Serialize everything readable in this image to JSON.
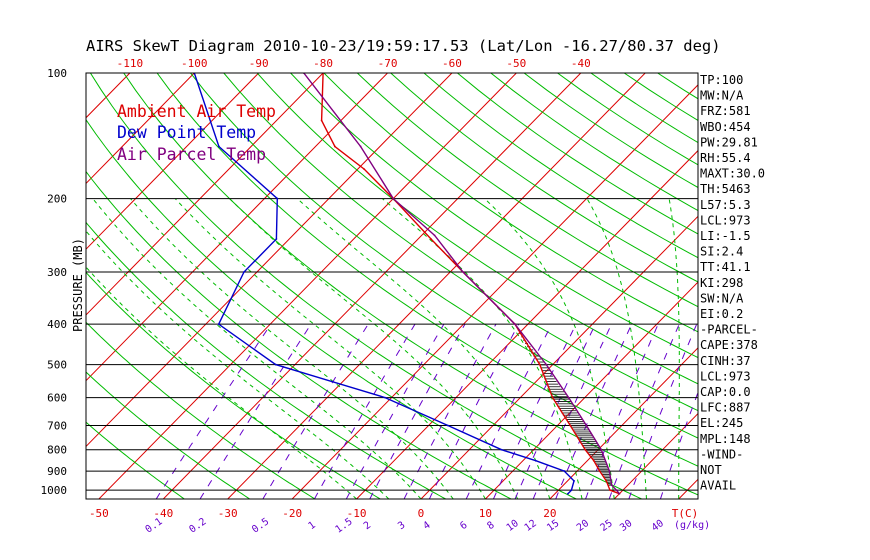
{
  "title": "AIRS SkewT Diagram 2010-10-23/19:59:17.53 (Lat/Lon -16.27/80.37 deg)",
  "ylabel": "PRESSURE (MB)",
  "legend": [
    "Ambient Air Temp",
    "Dew Point Temp",
    "Air Parcel Temp"
  ],
  "stats": [
    "TP:100",
    "MW:N/A",
    "FRZ:581",
    "WBO:454",
    "PW:29.81",
    "RH:55.4",
    "MAXT:30.0",
    "TH:5463",
    "L57:5.3",
    "LCL:973",
    "LI:-1.5",
    "SI:2.4",
    "TT:41.1",
    "KI:298",
    "SW:N/A",
    "EI:0.2",
    "-PARCEL-",
    "CAPE:378",
    "CINH:37",
    "LCL:973",
    "CAP:0.0",
    "LFC:887",
    "EL:245",
    "MPL:148",
    "-WIND-",
    "NOT",
    "AVAIL"
  ],
  "colors": {
    "temp": "#dd0000",
    "dewpoint": "#0000cc",
    "parcel": "#800080",
    "isotherm": "#dd0000",
    "dry_adiabat": "#00bb00",
    "mixing_ratio": "#6600cc",
    "axis": "#000000"
  },
  "chart_data": {
    "type": "line",
    "title": "AIRS SkewT Diagram 2010-10-23/19:59:17.53 (Lat/Lon -16.27/80.37 deg)",
    "ylabel": "PRESSURE (MB)",
    "y_scale": "log",
    "y_range": [
      1050,
      100
    ],
    "pressure_ticks": [
      100,
      200,
      300,
      400,
      500,
      600,
      700,
      800,
      900,
      1000
    ],
    "x_range": [
      -52,
      43
    ],
    "bottom_temp_ticks": [
      -50,
      -40,
      -30,
      -20,
      -10,
      0,
      10,
      20
    ],
    "bottom_temp_suffix": "T(C)",
    "top_temp_ticks": [
      -120,
      -110,
      -100,
      -90,
      -80,
      -70,
      -60,
      -50,
      -40
    ],
    "mixing_ratio_labels": [
      "0.1",
      "0.2",
      "0.5",
      "1",
      "1.5",
      "2",
      "3",
      "4",
      "6",
      "8",
      "10",
      "12",
      "15",
      "20",
      "25",
      "30",
      "40"
    ],
    "mixing_ratio_values": [
      0.1,
      0.2,
      0.5,
      1,
      1.5,
      2,
      3,
      4,
      6,
      8,
      10,
      12,
      15,
      20,
      25,
      30,
      40
    ],
    "mixing_ratio_units": "(g/kg)",
    "series": [
      {
        "name": "Ambient Air Temp",
        "points": [
          [
            1020,
            30
          ],
          [
            1000,
            28
          ],
          [
            950,
            26
          ],
          [
            900,
            23.5
          ],
          [
            850,
            21
          ],
          [
            800,
            18
          ],
          [
            700,
            12
          ],
          [
            600,
            5
          ],
          [
            500,
            -2
          ],
          [
            400,
            -12
          ],
          [
            300,
            -28
          ],
          [
            250,
            -38
          ],
          [
            200,
            -50
          ],
          [
            170,
            -59
          ],
          [
            150,
            -67
          ],
          [
            130,
            -73
          ],
          [
            100,
            -80
          ]
        ]
      },
      {
        "name": "Dew Point Temp",
        "points": [
          [
            1020,
            22
          ],
          [
            1000,
            22
          ],
          [
            950,
            21
          ],
          [
            900,
            18
          ],
          [
            850,
            12
          ],
          [
            800,
            5
          ],
          [
            700,
            -7
          ],
          [
            600,
            -21
          ],
          [
            500,
            -43
          ],
          [
            400,
            -58
          ],
          [
            300,
            -62
          ],
          [
            250,
            -62
          ],
          [
            200,
            -68
          ],
          [
            150,
            -85
          ],
          [
            100,
            -100
          ]
        ]
      },
      {
        "name": "Air Parcel Temp",
        "points": [
          [
            1020,
            30
          ],
          [
            1000,
            29
          ],
          [
            973,
            27.5
          ],
          [
            900,
            25
          ],
          [
            800,
            20.5
          ],
          [
            700,
            14.5
          ],
          [
            600,
            7.5
          ],
          [
            500,
            -1
          ],
          [
            400,
            -12
          ],
          [
            300,
            -28
          ],
          [
            245,
            -38
          ],
          [
            200,
            -50
          ],
          [
            150,
            -63
          ],
          [
            100,
            -83
          ]
        ]
      }
    ],
    "grid": true,
    "legend_position": "top-left"
  }
}
